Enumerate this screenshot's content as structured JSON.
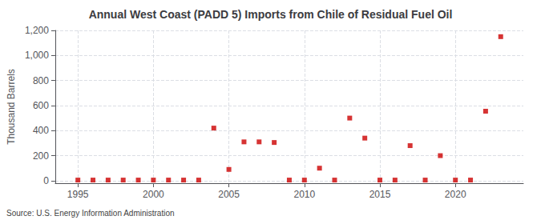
{
  "chart_data": {
    "type": "scatter",
    "title": "Annual West Coast (PADD 5) Imports from Chile of Residual Fuel Oil",
    "ylabel": "Thousand Barrels",
    "source": "Source: U.S. Energy Information Administration",
    "x": [
      1995,
      1996,
      1997,
      1998,
      1999,
      2000,
      2001,
      2002,
      2003,
      2004,
      2005,
      2006,
      2007,
      2008,
      2009,
      2010,
      2011,
      2012,
      2013,
      2014,
      2015,
      2016,
      2017,
      2018,
      2019,
      2020,
      2021,
      2022,
      2023
    ],
    "values": [
      5,
      5,
      5,
      5,
      5,
      5,
      5,
      5,
      5,
      420,
      90,
      310,
      310,
      305,
      5,
      5,
      100,
      5,
      500,
      340,
      5,
      5,
      280,
      5,
      200,
      5,
      5,
      555,
      1150
    ],
    "color": "#cc0000",
    "marker": "square",
    "xlim": [
      1993.5,
      2024.5
    ],
    "xticks": [
      1995,
      2000,
      2005,
      2010,
      2015,
      2020
    ],
    "ylim": [
      -20,
      1200
    ],
    "yticks": [
      0,
      200,
      400,
      600,
      800,
      {
        "value": 1000,
        "label": "1,000"
      },
      {
        "value": 1200,
        "label": "1,200"
      }
    ],
    "grid": true
  }
}
